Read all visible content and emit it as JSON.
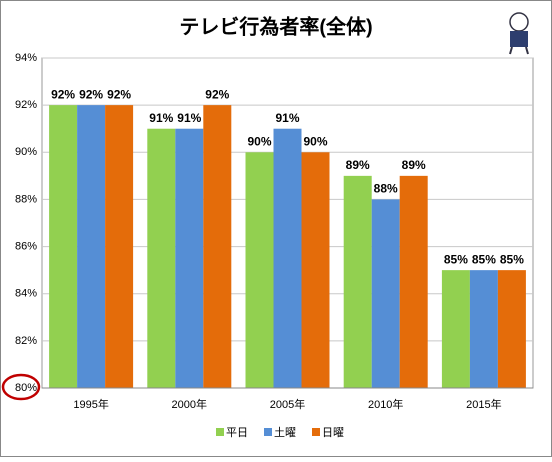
{
  "chart_data": {
    "type": "bar",
    "title": "テレビ行為者率(全体)",
    "categories": [
      "1995年",
      "2000年",
      "2005年",
      "2010年",
      "2015年"
    ],
    "series": [
      {
        "name": "平日",
        "color": "#92d050",
        "values": [
          92,
          91,
          90,
          89,
          85
        ],
        "value_labels": [
          "92%",
          "91%",
          "90%",
          "89%",
          "85%"
        ]
      },
      {
        "name": "土曜",
        "color": "#558ed5",
        "values": [
          92,
          91,
          91,
          88,
          85
        ],
        "value_labels": [
          "92%",
          "91%",
          "91%",
          "88%",
          "85%"
        ]
      },
      {
        "name": "日曜",
        "color": "#e46c0a",
        "values": [
          92,
          92,
          90,
          89,
          85
        ],
        "value_labels": [
          "92%",
          "92%",
          "90%",
          "89%",
          "85%"
        ]
      }
    ],
    "ylim": [
      80,
      94
    ],
    "yticks": [
      {
        "value": 80,
        "label": "80%"
      },
      {
        "value": 82,
        "label": "82%"
      },
      {
        "value": 84,
        "label": "84%"
      },
      {
        "value": 86,
        "label": "86%"
      },
      {
        "value": 88,
        "label": "88%"
      },
      {
        "value": 90,
        "label": "90%"
      },
      {
        "value": 92,
        "label": "92%"
      },
      {
        "value": 94,
        "label": "94%"
      }
    ],
    "grid": true
  }
}
